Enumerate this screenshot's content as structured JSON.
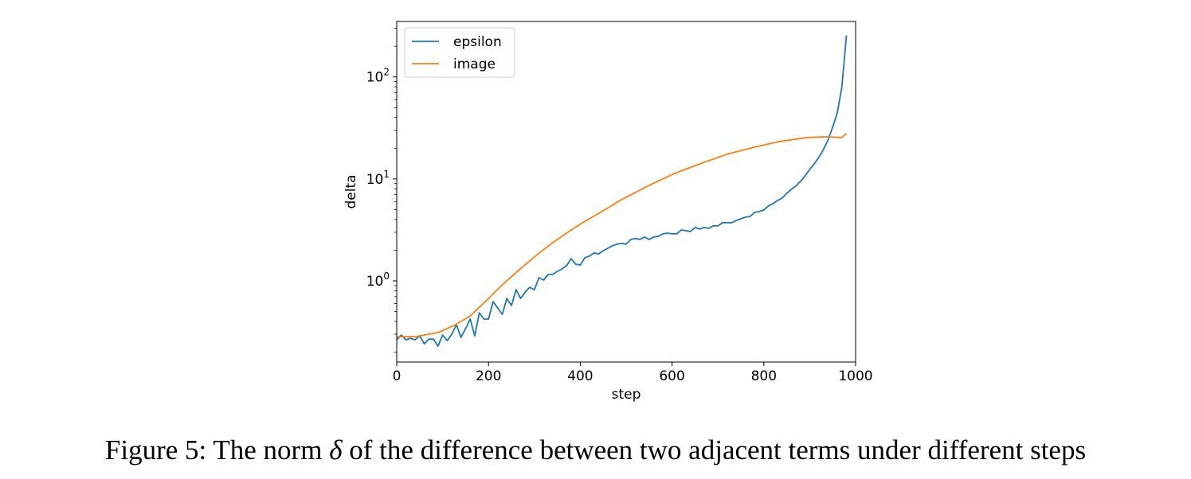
{
  "chart_data": {
    "type": "line",
    "title": "",
    "xlabel": "step",
    "ylabel": "delta",
    "xlim": [
      0,
      1000
    ],
    "ylim": [
      0.16,
      350
    ],
    "yscale": "log",
    "xticks": [
      0,
      200,
      400,
      600,
      800,
      1000
    ],
    "yticks": [
      1,
      10,
      100
    ],
    "ytick_labels": [
      "10^0",
      "10^1",
      "10^2"
    ],
    "grid": false,
    "legend": "top-left",
    "series": [
      {
        "name": "epsilon",
        "color": "#1f77b4",
        "x": [
          0,
          10,
          20,
          30,
          40,
          50,
          60,
          70,
          80,
          90,
          100,
          110,
          120,
          130,
          140,
          150,
          160,
          170,
          180,
          190,
          200,
          210,
          220,
          230,
          240,
          250,
          260,
          270,
          280,
          290,
          300,
          310,
          320,
          330,
          340,
          350,
          360,
          370,
          380,
          390,
          400,
          410,
          420,
          430,
          440,
          450,
          460,
          470,
          480,
          490,
          500,
          510,
          520,
          530,
          540,
          550,
          560,
          570,
          580,
          590,
          600,
          610,
          620,
          630,
          640,
          650,
          660,
          670,
          680,
          690,
          700,
          710,
          720,
          730,
          740,
          750,
          760,
          770,
          780,
          790,
          800,
          810,
          820,
          830,
          840,
          850,
          860,
          870,
          880,
          890,
          900,
          910,
          920,
          930,
          940,
          950,
          960,
          970,
          980
        ],
        "y": [
          0.264,
          0.294,
          0.264,
          0.274,
          0.264,
          0.289,
          0.241,
          0.269,
          0.269,
          0.229,
          0.294,
          0.259,
          0.3,
          0.372,
          0.279,
          0.34,
          0.422,
          0.289,
          0.487,
          0.422,
          0.422,
          0.626,
          0.542,
          0.47,
          0.673,
          0.573,
          0.82,
          0.673,
          0.778,
          0.866,
          0.82,
          1.075,
          1.018,
          1.155,
          1.155,
          1.24,
          1.31,
          1.41,
          1.65,
          1.46,
          1.43,
          1.69,
          1.75,
          1.88,
          1.84,
          1.98,
          2.09,
          2.21,
          2.29,
          2.33,
          2.29,
          2.55,
          2.6,
          2.55,
          2.69,
          2.55,
          2.69,
          2.74,
          2.89,
          2.94,
          2.89,
          2.89,
          3.16,
          3.11,
          3.05,
          3.34,
          3.22,
          3.34,
          3.28,
          3.46,
          3.46,
          3.72,
          3.72,
          3.72,
          3.92,
          4.07,
          4.22,
          4.29,
          4.7,
          4.78,
          4.96,
          5.43,
          5.73,
          6.15,
          6.49,
          7.23,
          7.91,
          8.51,
          9.48,
          10.7,
          12.4,
          14.1,
          16.3,
          19.5,
          24.1,
          32.2,
          44.5,
          79.1,
          255
        ]
      },
      {
        "name": "image",
        "color": "#ff7f0e",
        "x": [
          0,
          40,
          90,
          125,
          160,
          195,
          230,
          265,
          300,
          335,
          370,
          405,
          450,
          490,
          550,
          605,
          665,
          720,
          780,
          835,
          895,
          935,
          970,
          980
        ],
        "y": [
          0.284,
          0.284,
          0.311,
          0.365,
          0.453,
          0.638,
          0.914,
          1.26,
          1.72,
          2.29,
          2.94,
          3.72,
          4.87,
          6.26,
          8.66,
          11.3,
          14.3,
          17.5,
          20.5,
          23.3,
          25.5,
          25.9,
          25.5,
          27.9
        ]
      }
    ]
  },
  "caption": {
    "prefix": "Figure 5: The norm ",
    "symbol": "δ",
    "suffix": " of the difference between two adjacent terms under different steps"
  }
}
